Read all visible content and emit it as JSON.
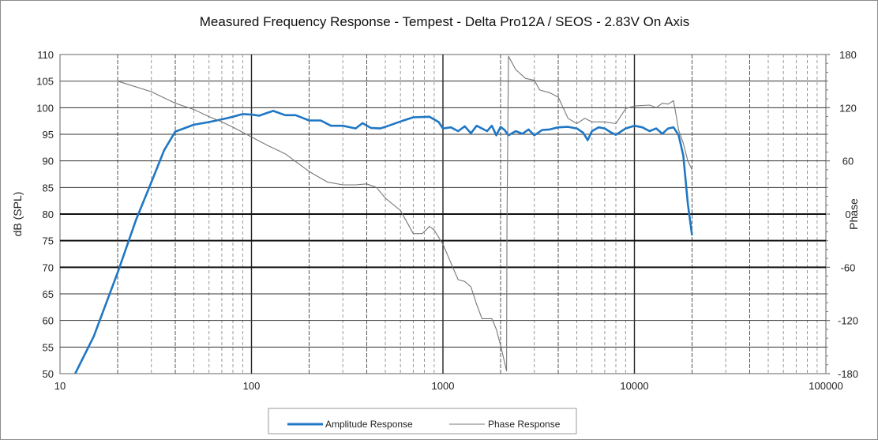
{
  "chart_data": {
    "type": "line",
    "title": "Measured Frequency Response - Tempest - Delta Pro12A / SEOS - 2.83V On Axis",
    "xlabel": "",
    "ylabel": "dB (SPL)",
    "y2label": "Phase",
    "x_scale": "log",
    "xlim": [
      10,
      100000
    ],
    "ylim": [
      50,
      110
    ],
    "y2lim": [
      -180,
      180
    ],
    "x_ticks": [
      "10",
      "100",
      "1000",
      "10000",
      "100000"
    ],
    "y_ticks": [
      "50",
      "55",
      "60",
      "65",
      "70",
      "75",
      "80",
      "85",
      "90",
      "95",
      "100",
      "105",
      "110"
    ],
    "y2_ticks": [
      "-180",
      "-120",
      "-60",
      "0",
      "60",
      "120",
      "180"
    ],
    "grid": true,
    "legend_position": "bottom",
    "series": [
      {
        "name": "Amplitude Response",
        "color": "#1f77c4",
        "axis": "left",
        "points": [
          [
            12,
            50
          ],
          [
            15,
            57
          ],
          [
            20,
            69
          ],
          [
            25,
            79
          ],
          [
            30,
            86
          ],
          [
            35,
            92
          ],
          [
            40,
            95.5
          ],
          [
            50,
            96.8
          ],
          [
            60,
            97.3
          ],
          [
            70,
            97.8
          ],
          [
            80,
            98.3
          ],
          [
            90,
            98.8
          ],
          [
            100,
            98.7
          ],
          [
            110,
            98.5
          ],
          [
            120,
            99
          ],
          [
            130,
            99.4
          ],
          [
            150,
            98.6
          ],
          [
            170,
            98.6
          ],
          [
            200,
            97.6
          ],
          [
            230,
            97.6
          ],
          [
            260,
            96.6
          ],
          [
            300,
            96.6
          ],
          [
            350,
            96.1
          ],
          [
            380,
            97.1
          ],
          [
            420,
            96.2
          ],
          [
            470,
            96.1
          ],
          [
            520,
            96.6
          ],
          [
            600,
            97.4
          ],
          [
            700,
            98.2
          ],
          [
            850,
            98.3
          ],
          [
            950,
            97.3
          ],
          [
            1000,
            96.1
          ],
          [
            1100,
            96.3
          ],
          [
            1200,
            95.6
          ],
          [
            1300,
            96.5
          ],
          [
            1400,
            95.2
          ],
          [
            1500,
            96.6
          ],
          [
            1700,
            95.6
          ],
          [
            1800,
            96.6
          ],
          [
            1900,
            94.8
          ],
          [
            2000,
            96.4
          ],
          [
            2100,
            95.8
          ],
          [
            2200,
            94.8
          ],
          [
            2400,
            95.6
          ],
          [
            2600,
            95.1
          ],
          [
            2800,
            95.9
          ],
          [
            3000,
            94.8
          ],
          [
            3300,
            95.8
          ],
          [
            3600,
            95.9
          ],
          [
            4000,
            96.3
          ],
          [
            4500,
            96.4
          ],
          [
            5000,
            96.1
          ],
          [
            5400,
            95.3
          ],
          [
            5700,
            93.9
          ],
          [
            6000,
            95.6
          ],
          [
            6500,
            96.3
          ],
          [
            7000,
            96.1
          ],
          [
            7500,
            95.4
          ],
          [
            8000,
            94.9
          ],
          [
            9000,
            96.1
          ],
          [
            10000,
            96.6
          ],
          [
            11000,
            96.3
          ],
          [
            12000,
            95.6
          ],
          [
            13000,
            96.1
          ],
          [
            14000,
            95.1
          ],
          [
            15000,
            96.1
          ],
          [
            16000,
            96.3
          ],
          [
            17000,
            94.9
          ],
          [
            18000,
            91
          ],
          [
            19000,
            82
          ],
          [
            20000,
            76
          ]
        ]
      },
      {
        "name": "Phase Response",
        "color": "#777777",
        "axis": "right",
        "points": [
          [
            10,
            150
          ],
          [
            20,
            150
          ],
          [
            30,
            138
          ],
          [
            40,
            125
          ],
          [
            50,
            118
          ],
          [
            60,
            110
          ],
          [
            70,
            104
          ],
          [
            80,
            98
          ],
          [
            100,
            87
          ],
          [
            120,
            78
          ],
          [
            150,
            68
          ],
          [
            200,
            48
          ],
          [
            250,
            36
          ],
          [
            300,
            33
          ],
          [
            350,
            33
          ],
          [
            400,
            34
          ],
          [
            450,
            30
          ],
          [
            500,
            18
          ],
          [
            600,
            4
          ],
          [
            700,
            -22
          ],
          [
            780,
            -22
          ],
          [
            850,
            -14
          ],
          [
            900,
            -18
          ],
          [
            1000,
            -34
          ],
          [
            1100,
            -55
          ],
          [
            1200,
            -74
          ],
          [
            1300,
            -76
          ],
          [
            1400,
            -82
          ],
          [
            1500,
            -102
          ],
          [
            1600,
            -118
          ],
          [
            1800,
            -118
          ],
          [
            1900,
            -130
          ],
          [
            2000,
            -148
          ],
          [
            2150,
            -177
          ],
          [
            2160,
            -10
          ],
          [
            2200,
            178
          ],
          [
            2400,
            163
          ],
          [
            2700,
            153
          ],
          [
            3000,
            151
          ],
          [
            3200,
            140
          ],
          [
            3600,
            137
          ],
          [
            4000,
            132
          ],
          [
            4500,
            108
          ],
          [
            5000,
            102
          ],
          [
            5500,
            108
          ],
          [
            6000,
            104
          ],
          [
            7000,
            104
          ],
          [
            8000,
            102
          ],
          [
            9000,
            119
          ],
          [
            10000,
            122
          ],
          [
            12000,
            123
          ],
          [
            13000,
            120
          ],
          [
            14000,
            125
          ],
          [
            15000,
            124
          ],
          [
            16000,
            128
          ],
          [
            16500,
            112
          ],
          [
            17000,
            95
          ],
          [
            18000,
            80
          ],
          [
            19000,
            60
          ],
          [
            20000,
            50
          ]
        ]
      }
    ]
  }
}
